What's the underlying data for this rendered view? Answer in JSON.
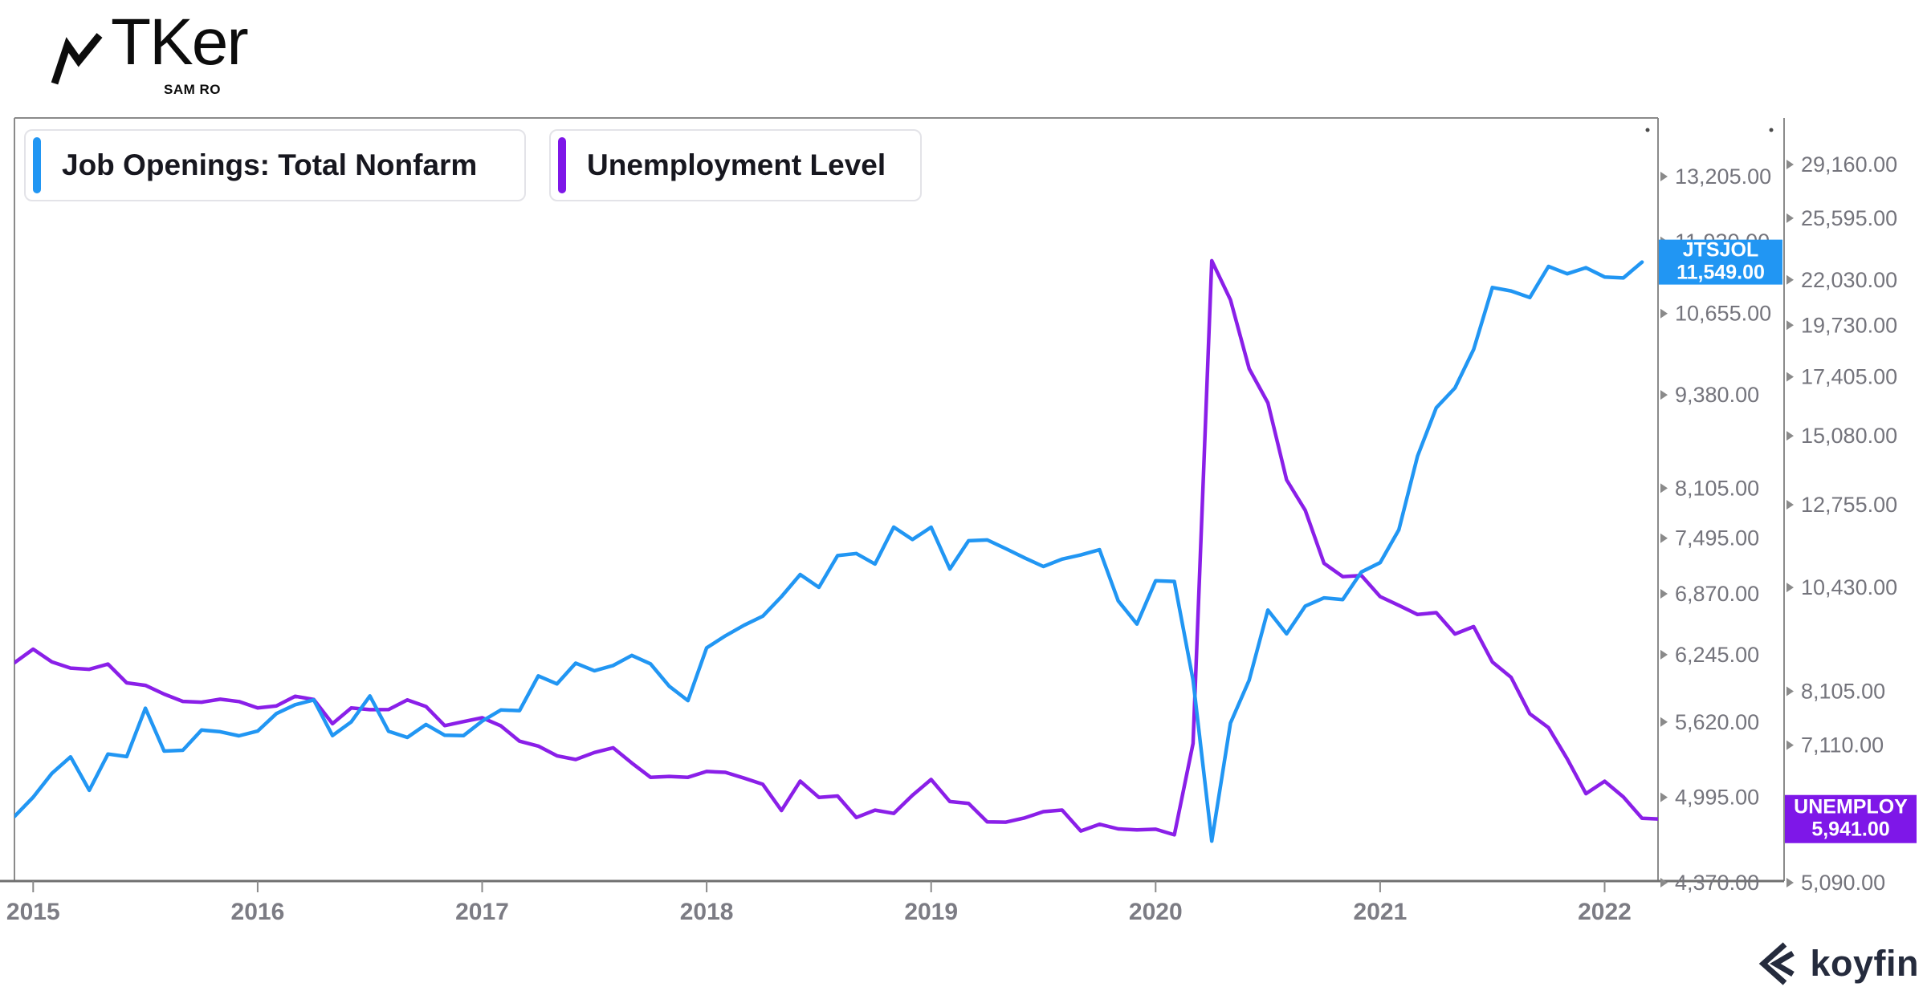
{
  "header": {
    "brand": "TKer",
    "brand_sub": "SAM RO"
  },
  "legend": [
    {
      "label": "Job Openings: Total Nonfarm",
      "color": "#2196F3"
    },
    {
      "label": "Unemployment Level",
      "color": "#7E17E8"
    }
  ],
  "footer": {
    "brand": "koyfin"
  },
  "colors": {
    "jtsjol_line": "#2196F3",
    "unemploy_line": "#8A1FE8",
    "jtsjol_badge": "#2196F3",
    "unemploy_badge": "#7E17E8",
    "axis_line": "#8a8a8a",
    "axis_bottom_line": "#6f6f6f",
    "tick_label": "#74747c",
    "year_label": "#7c7c84"
  },
  "chart_data": {
    "type": "line",
    "x_start": "2014-12",
    "frequency": "monthly",
    "x_tick_labels": [
      "2015",
      "2016",
      "2017",
      "2018",
      "2019",
      "2020",
      "2021",
      "2022"
    ],
    "grid": false,
    "legend_position": "top-left",
    "axes": {
      "inner_right": {
        "scale": "log",
        "format": "#,##0.00",
        "ticks": [
          13205,
          11930,
          10655,
          9380,
          8105,
          7495,
          6870,
          6245,
          5620,
          4995,
          4370
        ]
      },
      "outer_right": {
        "scale": "log",
        "format": "#,##0.00",
        "ticks": [
          29160,
          25595,
          22030,
          19730,
          17405,
          15080,
          12755,
          10430,
          8105,
          7110,
          5090
        ]
      }
    },
    "series": [
      {
        "name": "Job Openings: Total Nonfarm",
        "ticker": "JTSJOL",
        "axis": "inner_right",
        "color": "#2196F3",
        "last_value": 11549,
        "last_value_label": "11,549.00",
        "values": [
          4847,
          4996,
          5186,
          5322,
          5050,
          5345,
          5324,
          5743,
          5370,
          5377,
          5550,
          5535,
          5500,
          5541,
          5695,
          5774,
          5818,
          5502,
          5621,
          5854,
          5539,
          5486,
          5598,
          5505,
          5501,
          5628,
          5727,
          5721,
          6041,
          5966,
          6163,
          6090,
          6140,
          6238,
          6156,
          5944,
          5812,
          6312,
          6432,
          6540,
          6633,
          6840,
          7080,
          6939,
          7293,
          7317,
          7198,
          7626,
          7479,
          7625,
          7142,
          7465,
          7474,
          7372,
          7267,
          7170,
          7253,
          7301,
          7361,
          6794,
          6552,
          7012,
          7004,
          6002,
          4664,
          5611,
          6001,
          6697,
          6452,
          6739,
          6826,
          6808,
          7109,
          7213,
          7594,
          8523,
          9193,
          9483,
          10073,
          11098,
          11039,
          10925,
          11471,
          11339,
          11448,
          11283,
          11266,
          11549
        ]
      },
      {
        "name": "Unemployment Level",
        "ticker": "UNEMPLOY",
        "axis": "outer_right",
        "color": "#8A1FE8",
        "last_value": 5941,
        "last_value_label": "5,941.00",
        "values": [
          8688,
          8979,
          8705,
          8575,
          8549,
          8659,
          8272,
          8222,
          8049,
          7908,
          7893,
          7949,
          7904,
          7784,
          7820,
          8007,
          7945,
          7490,
          7783,
          7751,
          7754,
          7936,
          7809,
          7455,
          7528,
          7600,
          7451,
          7178,
          7094,
          6929,
          6866,
          6984,
          7065,
          6808,
          6575,
          6590,
          6576,
          6670,
          6656,
          6563,
          6465,
          6065,
          6515,
          6262,
          6284,
          5963,
          6071,
          6023,
          6295,
          6541,
          6200,
          6172,
          5900,
          5896,
          5958,
          6049,
          6072,
          5771,
          5867,
          5800,
          5787,
          5796,
          5717,
          7140,
          23078,
          20985,
          17750,
          16338,
          13550,
          12580,
          11061,
          10710,
          10736,
          10202,
          9988,
          9767,
          9812,
          9316,
          9484,
          8702,
          8384,
          7674,
          7419,
          6877,
          6319,
          6513,
          6270,
          5952,
          5941
        ]
      }
    ]
  }
}
